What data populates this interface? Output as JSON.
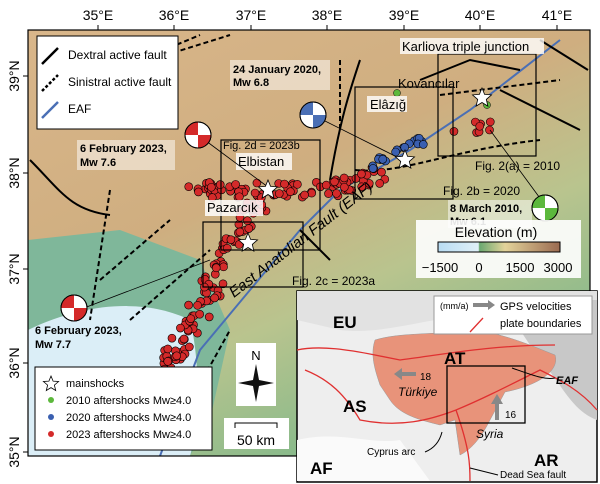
{
  "axes": {
    "lon_ticks": [
      "35°E",
      "36°E",
      "37°E",
      "38°E",
      "39°E",
      "40°E",
      "41°E"
    ],
    "lat_ticks": [
      "39°N",
      "38°N",
      "37°N",
      "36°N",
      "35°N"
    ]
  },
  "fault_legend": {
    "dextral": "Dextral active fault",
    "sinistral": "Sinistral active fault",
    "eaf": "EAF"
  },
  "places": {
    "karliova": "Karliova triple junction",
    "kovancilar": "Kovancılar",
    "elazig": "Elâzığ",
    "elbistan": "Elbistan",
    "pazarcik": "Pazarcık",
    "eaf_label": "East Anatolian Fault (EAF)"
  },
  "events": {
    "e2020": [
      "24 January 2020,",
      "Mw 6.8"
    ],
    "e2023b": [
      "6 February 2023,",
      "Mw 7.6"
    ],
    "e2010": [
      "8 March 2010,",
      "Mw 6.1"
    ],
    "e2023a": [
      "6 February 2023,",
      "Mw 7.7"
    ]
  },
  "figure_boxes": {
    "f2d": "Fig. 2d = 2023b",
    "f2a": "Fig. 2(a) = 2010",
    "f2b": "Fig. 2b = 2020",
    "f2c": "Fig. 2c = 2023a"
  },
  "elevation": {
    "title": "Elevation (m)",
    "ticks": [
      "−1500",
      "0",
      "1500",
      "3000"
    ]
  },
  "shock_legend": {
    "mainshocks": "mainshocks",
    "a2010": "2010 aftershocks  Mw≥4.0",
    "a2020": "2020 aftershocks  Mw≥4.0",
    "a2023": "2023 aftershocks  Mw≥4.0"
  },
  "colors": {
    "a2010": "#5cb83c",
    "a2020": "#3a5fb0",
    "a2023": "#d42a2a",
    "eaf": "#4a6fb5",
    "plate": "#e03030",
    "anatolia": "#e8937a"
  },
  "compass": {
    "n": "N"
  },
  "scale": {
    "label": "50 km"
  },
  "inset": {
    "legend_units": "(mm/a)",
    "gps": "GPS velocities",
    "plates": "plate boundaries",
    "labels": {
      "eu": "EU",
      "at": "AT",
      "as": "AS",
      "af": "AF",
      "ar": "AR",
      "eaf": "EAF",
      "turkiye": "Türkiye",
      "syria": "Syria",
      "cyprus": "Cyprus arc",
      "deadsea": "Dead Sea fault"
    },
    "vel_west": "18",
    "vel_north": "16"
  }
}
